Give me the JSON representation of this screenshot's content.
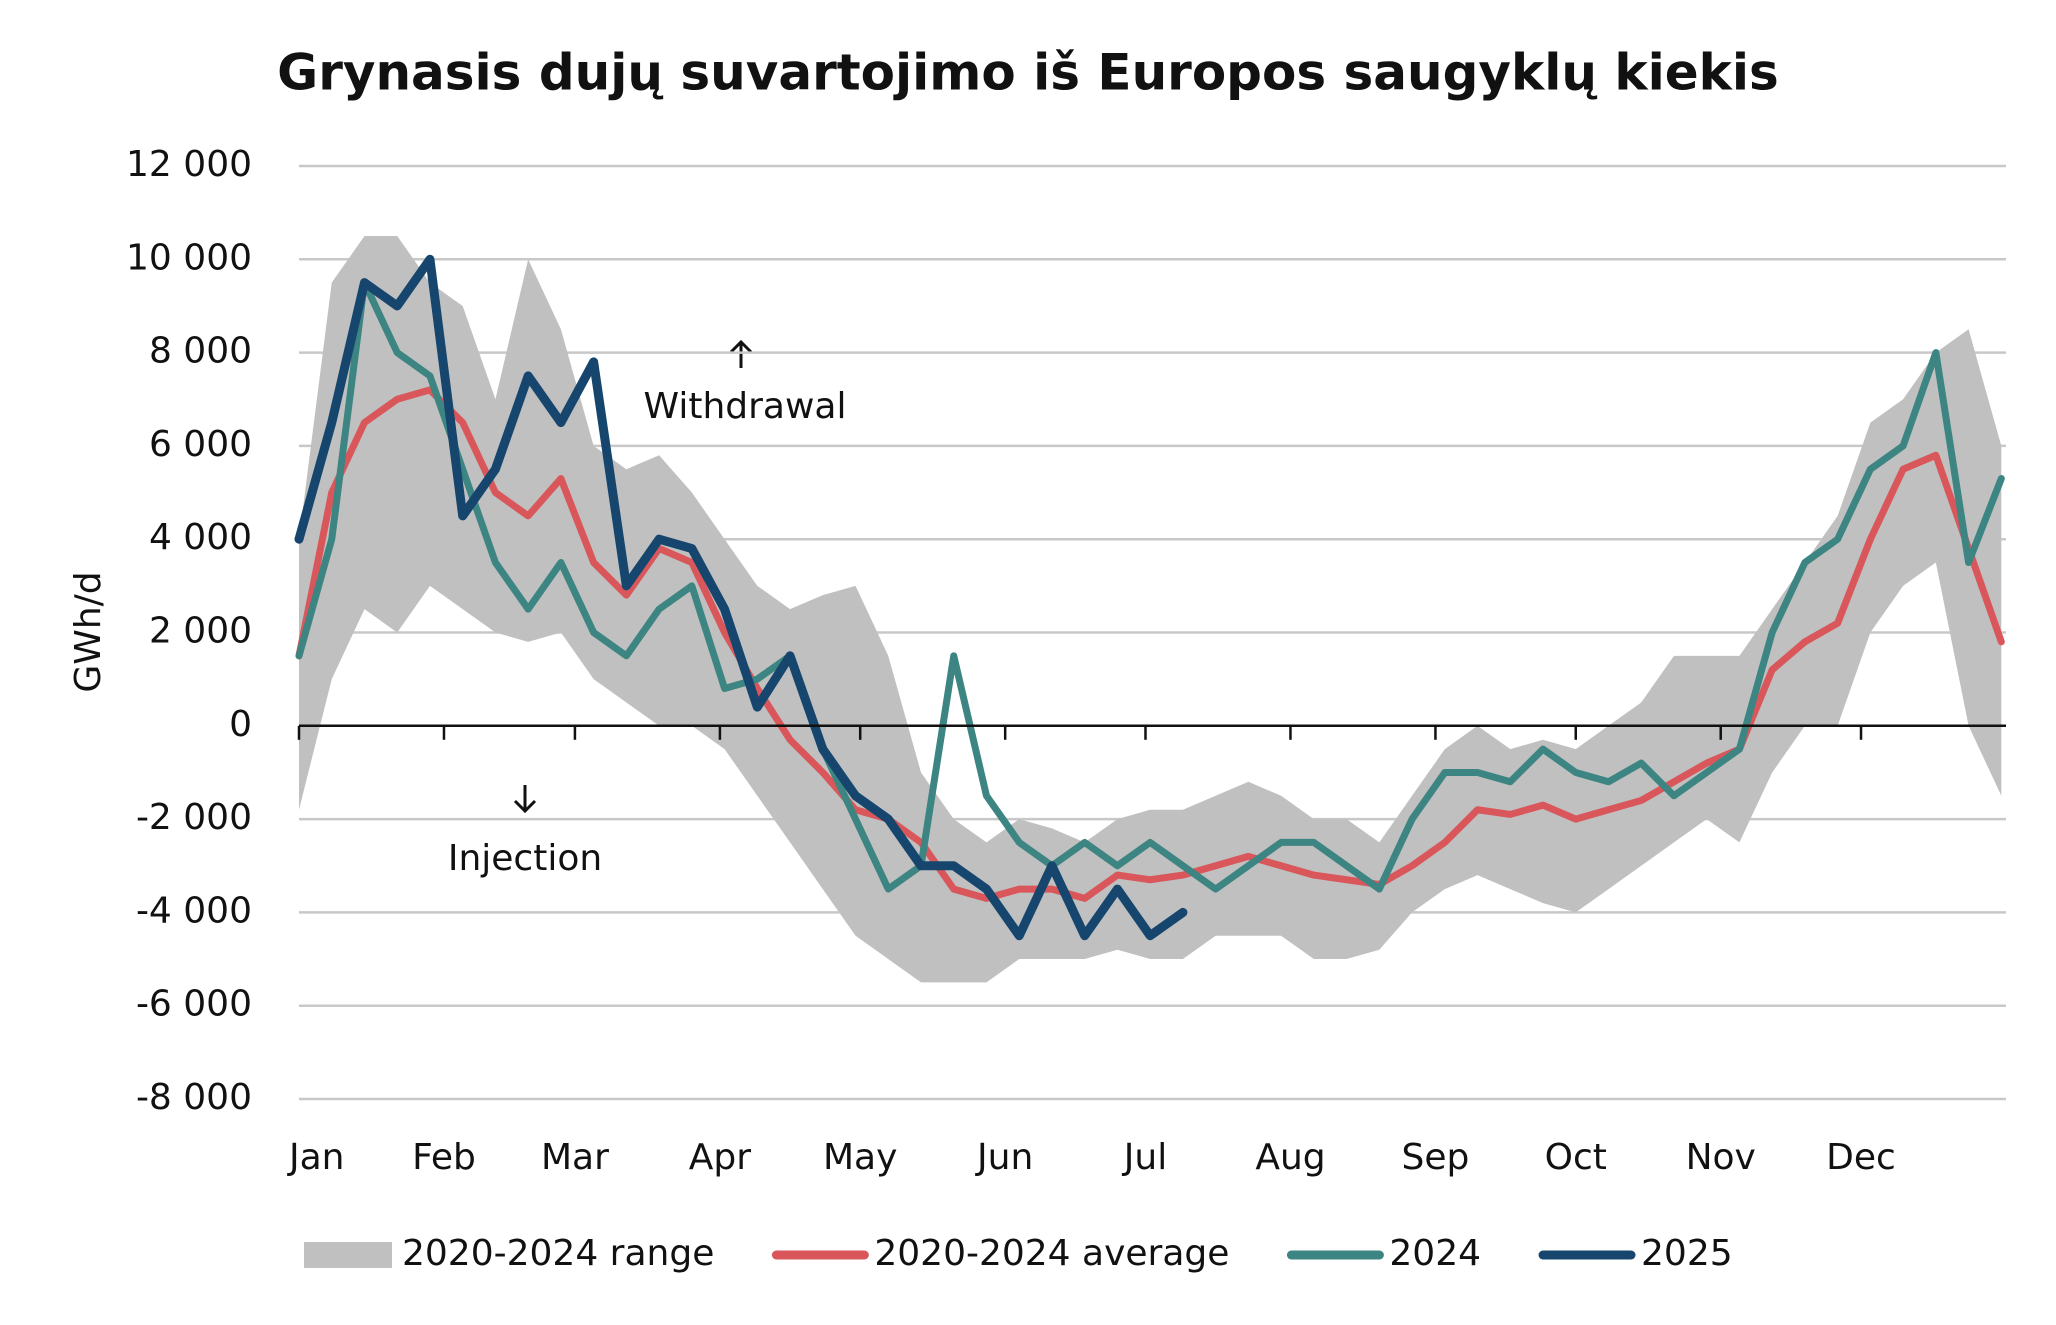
{
  "chart_data": {
    "type": "line",
    "title": "Grynasis dujų suvartojimo iš Europos saugyklų kiekis",
    "y_label": "GWh/d",
    "annotations": [
      "Withdrawal",
      "Injection"
    ],
    "x": [
      1,
      8,
      15,
      22,
      29,
      36,
      43,
      50,
      57,
      64,
      71,
      78,
      85,
      92,
      99,
      106,
      113,
      120,
      127,
      134,
      141,
      148,
      155,
      162,
      169,
      176,
      183,
      190,
      197,
      204,
      211,
      218,
      225,
      232,
      239,
      246,
      253,
      260,
      267,
      274,
      281,
      288,
      295,
      302,
      309,
      316,
      323,
      330,
      337,
      344,
      351,
      358,
      365
    ],
    "xlim": [
      1,
      366
    ],
    "xticks": [
      {
        "value": 1,
        "label": "Jan"
      },
      {
        "value": 32,
        "label": "Feb"
      },
      {
        "value": 60,
        "label": "Mar"
      },
      {
        "value": 91,
        "label": "Apr"
      },
      {
        "value": 121,
        "label": "May"
      },
      {
        "value": 152,
        "label": "Jun"
      },
      {
        "value": 182,
        "label": "Jul"
      },
      {
        "value": 213,
        "label": "Aug"
      },
      {
        "value": 244,
        "label": "Sep"
      },
      {
        "value": 274,
        "label": "Oct"
      },
      {
        "value": 305,
        "label": "Nov"
      },
      {
        "value": 335,
        "label": "Dec"
      }
    ],
    "ylim": [
      -8000,
      12000
    ],
    "yticks": [
      {
        "value": -8000,
        "label": "-8 000"
      },
      {
        "value": -6000,
        "label": "-6 000"
      },
      {
        "value": -4000,
        "label": "-4 000"
      },
      {
        "value": -2000,
        "label": "-2 000"
      },
      0,
      {
        "value": 2000,
        "label": "2 000"
      },
      {
        "value": 4000,
        "label": "4 000"
      },
      {
        "value": 6000,
        "label": "6 000"
      },
      {
        "value": 8000,
        "label": "8 000"
      },
      {
        "value": 10000,
        "label": "10 000"
      },
      {
        "value": 12000,
        "label": "12 000"
      }
    ],
    "grid": true,
    "series": [
      {
        "name": "2020-2024 range",
        "color": "#c0c0c0",
        "kind": "band",
        "high": [
          4000,
          9500,
          10500,
          10500,
          9500,
          9000,
          7000,
          10000,
          8500,
          6000,
          5500,
          5800,
          5000,
          4000,
          3000,
          2500,
          2800,
          3000,
          1500,
          -1000,
          -2000,
          -2500,
          -2000,
          -2200,
          -2500,
          -2000,
          -1800,
          -1800,
          -1500,
          -1200,
          -1500,
          -2000,
          -2000,
          -2500,
          -1500,
          -500,
          0,
          -500,
          -300,
          -500,
          0,
          500,
          1500,
          1500,
          1500,
          2500,
          3500,
          4500,
          6500,
          7000,
          8000,
          8500,
          6000
        ],
        "low": [
          -1800,
          1000,
          2500,
          2000,
          3000,
          2500,
          2000,
          1800,
          2000,
          1000,
          500,
          0,
          0,
          -500,
          -1500,
          -2500,
          -3500,
          -4500,
          -5000,
          -5500,
          -5500,
          -5500,
          -5000,
          -5000,
          -5000,
          -4800,
          -5000,
          -5000,
          -4500,
          -4500,
          -4500,
          -5000,
          -5000,
          -4800,
          -4000,
          -3500,
          -3200,
          -3500,
          -3800,
          -4000,
          -3500,
          -3000,
          -2500,
          -2000,
          -2500,
          -1000,
          0,
          0,
          2000,
          3000,
          3500,
          0,
          -1500
        ]
      },
      {
        "name": "2020-2024 average",
        "color": "#d9575b",
        "values": [
          1500,
          5000,
          6500,
          7000,
          7200,
          6500,
          5000,
          4500,
          5300,
          3500,
          2800,
          3800,
          3500,
          2000,
          800,
          -300,
          -1000,
          -1800,
          -2000,
          -2500,
          -3500,
          -3700,
          -3500,
          -3500,
          -3700,
          -3200,
          -3300,
          -3200,
          -3000,
          -2800,
          -3000,
          -3200,
          -3300,
          -3400,
          -3000,
          -2500,
          -1800,
          -1900,
          -1700,
          -2000,
          -1800,
          -1600,
          -1200,
          -800,
          -500,
          1200,
          1800,
          2200,
          4000,
          5500,
          5800,
          3800,
          1800
        ]
      },
      {
        "name": "2024",
        "color": "#3d8582",
        "values": [
          1500,
          4000,
          9500,
          8000,
          7500,
          5500,
          3500,
          2500,
          3500,
          2000,
          1500,
          2500,
          3000,
          800,
          1000,
          1500,
          -500,
          -2000,
          -3500,
          -3000,
          1500,
          -1500,
          -2500,
          -3000,
          -2500,
          -3000,
          -2500,
          -3000,
          -3500,
          -3000,
          -2500,
          -2500,
          -3000,
          -3500,
          -2000,
          -1000,
          -1000,
          -1200,
          -500,
          -1000,
          -1200,
          -800,
          -1500,
          -1000,
          -500,
          2000,
          3500,
          4000,
          5500,
          6000,
          8000,
          3500,
          5300
        ]
      },
      {
        "name": "2025",
        "color": "#16466e",
        "values": [
          4000,
          6500,
          9500,
          9000,
          10000,
          4500,
          5500,
          7500,
          6500,
          7800,
          3000,
          4000,
          3800,
          2500,
          400,
          1500,
          -500,
          -1500,
          -2000,
          -3000,
          -3000,
          -3500,
          -4500,
          -3000,
          -4500,
          -3500,
          -4500,
          -4000,
          null,
          null,
          null,
          null,
          null,
          null,
          null,
          null,
          null,
          null,
          null,
          null,
          null,
          null,
          null,
          null,
          null,
          null,
          null,
          null,
          null,
          null,
          null,
          null,
          null
        ]
      }
    ]
  }
}
